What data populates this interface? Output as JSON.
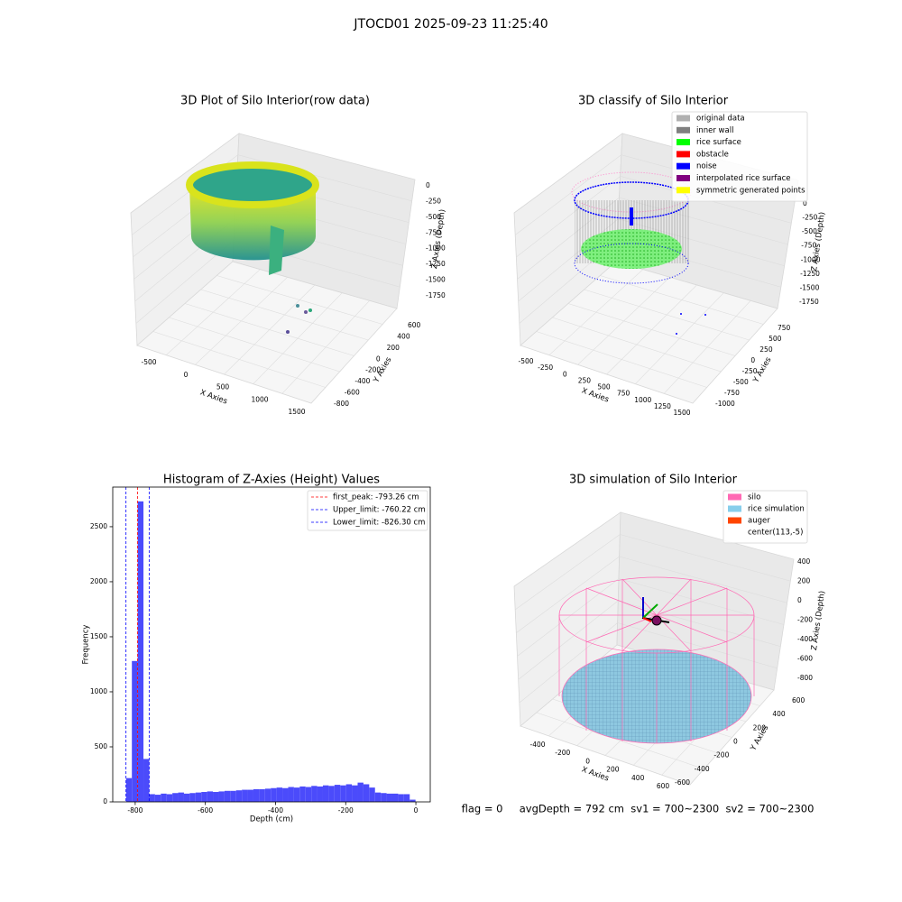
{
  "title": "JTOCD01 2025-09-23 11:25:40",
  "footer": "flag = 0     avgDepth = 792 cm  sv1 = 700~2300  sv2 = 700~2300",
  "chart_data": [
    {
      "type": "scatter3d",
      "title": "3D Plot of Silo Interior(row data)",
      "xlabel": "X Axies",
      "ylabel": "Y Axies",
      "zlabel": "Z Axies (Depth)",
      "xticks": [
        -500,
        0,
        500,
        1000,
        1500
      ],
      "yticks": [
        -800,
        -600,
        -400,
        -200,
        0,
        200,
        400,
        600
      ],
      "zticks": [
        0,
        -250,
        -500,
        -750,
        -1000,
        -1250,
        -1500,
        -1750
      ]
    },
    {
      "type": "scatter3d",
      "title": "3D classify of Silo Interior",
      "xlabel": "X Axies",
      "ylabel": "Y Axies",
      "zlabel": "Z Axies (Depth)",
      "xticks": [
        -500,
        -250,
        0,
        250,
        500,
        750,
        1000,
        1250,
        1500
      ],
      "yticks": [
        -1000,
        -750,
        -500,
        -250,
        0,
        250,
        500,
        750
      ],
      "zticks": [
        0,
        -250,
        -500,
        -750,
        -1000,
        -1250,
        -1500,
        -1750
      ],
      "legend": "upper right",
      "legend_entries": [
        {
          "name": "original data",
          "color": "#b0b0b0"
        },
        {
          "name": "inner wall",
          "color": "#808080"
        },
        {
          "name": "rice surface",
          "color": "#00ff00"
        },
        {
          "name": "obstacle",
          "color": "#ff0000"
        },
        {
          "name": "noise",
          "color": "#0000ff"
        },
        {
          "name": "interpolated rice surface",
          "color": "#800080"
        },
        {
          "name": "symmetric generated points",
          "color": "#ffff00"
        }
      ]
    },
    {
      "type": "histogram",
      "title": "Histogram of Z-Axies (Height) Values",
      "xlabel": "Depth (cm)",
      "ylabel": "Frequency",
      "color": "#4b4bfb",
      "bins": [
        -826,
        -809.5,
        -793,
        -776.5,
        -760,
        -743.5,
        -727,
        -710.5,
        -694,
        -677.5,
        -661,
        -644.5,
        -628,
        -611.5,
        -595,
        -578.5,
        -562,
        -545.5,
        -529,
        -512.5,
        -496,
        -479.5,
        -463,
        -446.5,
        -430,
        -413.5,
        -397,
        -380.5,
        -364,
        -347.5,
        -331,
        -314.5,
        -298,
        -281.5,
        -265,
        -248.5,
        -232,
        -215.5,
        -199,
        -182.5,
        -166,
        -149.5,
        -133,
        -116.5,
        -100,
        -83.5,
        -67,
        -50.5,
        -34,
        -17.5,
        -1
      ],
      "counts": [
        216,
        1280,
        2730,
        390,
        70,
        65,
        75,
        70,
        80,
        85,
        75,
        80,
        85,
        90,
        95,
        90,
        95,
        100,
        100,
        105,
        110,
        110,
        115,
        115,
        120,
        125,
        130,
        125,
        135,
        130,
        140,
        135,
        145,
        140,
        150,
        145,
        155,
        150,
        160,
        150,
        175,
        160,
        130,
        85,
        80,
        75,
        75,
        70,
        70,
        20
      ],
      "xlim": [
        -864,
        41
      ],
      "ylim": [
        0,
        2860
      ],
      "xticks": [
        -800,
        -600,
        -400,
        -200,
        0
      ],
      "yticks": [
        0,
        500,
        1000,
        1500,
        2000,
        2500
      ],
      "legend": "upper right",
      "lines": [
        {
          "name": "first_peak: -793.26 cm",
          "value": -793.26,
          "color": "#ff0000"
        },
        {
          "name": "Upper_limit: -760.22 cm",
          "value": -760.22,
          "color": "#0000ff"
        },
        {
          "name": "Lower_limit: -826.30 cm",
          "value": -826.3,
          "color": "#0000ff"
        }
      ]
    },
    {
      "type": "surface3d",
      "title": "3D simulation of Silo Interior",
      "xlabel": "X Axies",
      "ylabel": "Y Axies",
      "zlabel": "Z Axies (Depth)",
      "xticks": [
        -400,
        -200,
        0,
        200,
        400,
        600
      ],
      "yticks": [
        -600,
        -400,
        -200,
        0,
        200,
        400,
        600
      ],
      "zticks": [
        400,
        200,
        0,
        -200,
        -400,
        -600,
        -800
      ],
      "legend": "upper right",
      "legend_entries": [
        {
          "name": "silo",
          "color": "#ff69b4"
        },
        {
          "name": "rice simulation",
          "color": "#87ceeb"
        },
        {
          "name": "auger",
          "color": "#ff4500"
        },
        {
          "name": "center(113,-5)",
          "color": "#ffffff"
        }
      ]
    }
  ]
}
